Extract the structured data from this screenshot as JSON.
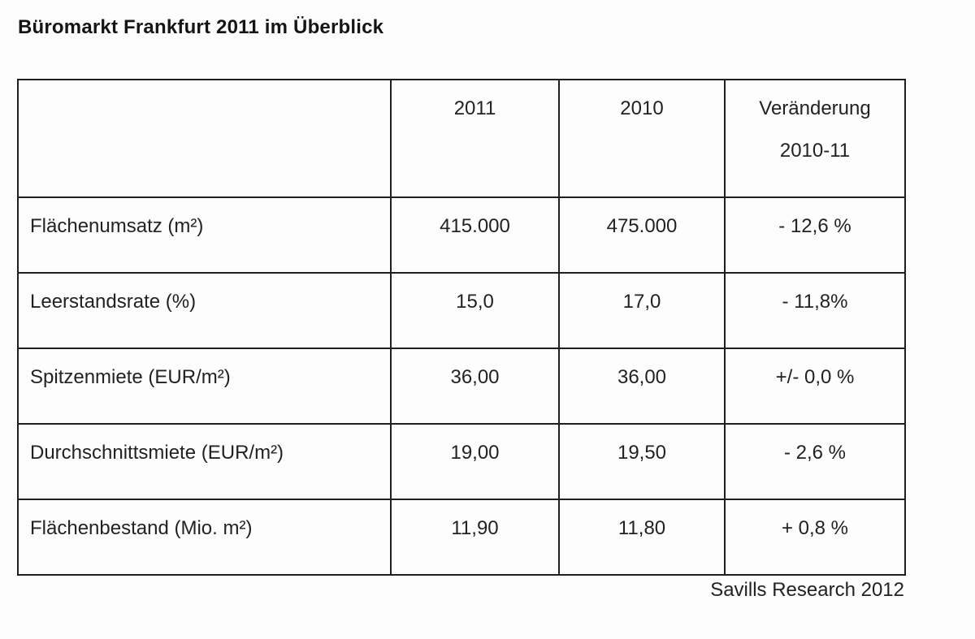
{
  "page": {
    "title": "Büromarkt Frankfurt 2011 im Überblick",
    "source": "Savills Research 2012"
  },
  "colors": {
    "background": "#fdfdfd",
    "text": "#1c1c1c",
    "border": "#1f1f1f"
  },
  "table": {
    "header": {
      "col_label": "",
      "col_2011": "2011",
      "col_2010": "2010",
      "col_change_line1": "Veränderung",
      "col_change_line2": "2010-11"
    },
    "rows": [
      {
        "label": "Flächenumsatz (m²)",
        "v2011": "415.000",
        "v2010": "475.000",
        "change": "- 12,6 %"
      },
      {
        "label": "Leerstandsrate (%)",
        "v2011": "15,0",
        "v2010": "17,0",
        "change": "- 11,8%"
      },
      {
        "label": "Spitzenmiete (EUR/m²)",
        "v2011": "36,00",
        "v2010": "36,00",
        "change": "+/- 0,0 %"
      },
      {
        "label": "Durchschnittsmiete (EUR/m²)",
        "v2011": "19,00",
        "v2010": "19,50",
        "change": "- 2,6 %"
      },
      {
        "label": "Flächenbestand (Mio. m²)",
        "v2011": "11,90",
        "v2010": "11,80",
        "change": "+ 0,8 %"
      }
    ]
  }
}
